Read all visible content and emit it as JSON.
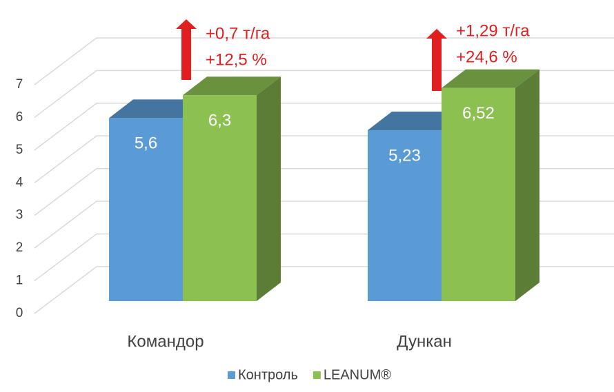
{
  "chart_data": {
    "type": "bar3d",
    "categories": [
      "Командор",
      "Дункан"
    ],
    "series": [
      {
        "name": "Контроль",
        "color": "#5b9bd5",
        "values": [
          5.6,
          5.23
        ],
        "value_labels": [
          "5,6",
          "5,23"
        ]
      },
      {
        "name": "LEANUM®",
        "color": "#8cc152",
        "values": [
          6.3,
          6.52
        ],
        "value_labels": [
          "6,3",
          "6,52"
        ]
      }
    ],
    "ylim": [
      0,
      7
    ],
    "yticks": [
      0,
      1,
      2,
      3,
      4,
      5,
      6,
      7
    ],
    "grid": true,
    "annotations": [
      [
        "+0,7 т/га",
        "+12,5 %"
      ],
      [
        "+1,29 т/га",
        "+24,6 %"
      ]
    ],
    "annotation_color": "#e02020",
    "legend": "bottom"
  }
}
